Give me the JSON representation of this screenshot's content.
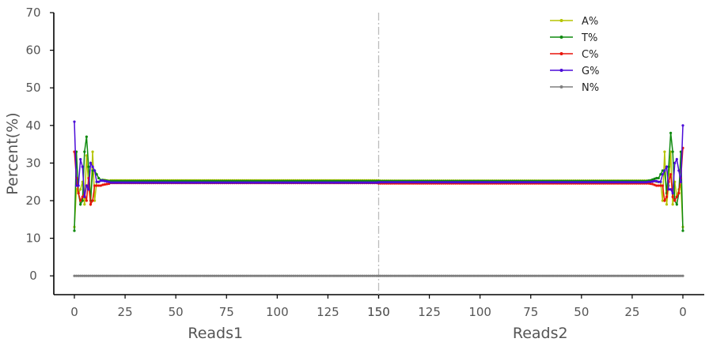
{
  "chart_data": {
    "type": "line",
    "ylabel": "Percent(%)",
    "ylim": [
      -5,
      70
    ],
    "yticks": [
      0,
      10,
      20,
      30,
      40,
      50,
      60,
      70
    ],
    "xaxis": {
      "left_segment": {
        "label": "Reads1",
        "positions": [
          0,
          150
        ]
      },
      "right_segment": {
        "label": "Reads2",
        "positions": [
          150,
          0
        ]
      },
      "left_ticks": [
        0,
        25,
        50,
        75,
        100,
        125,
        150
      ],
      "right_ticks": [
        150,
        125,
        100,
        75,
        50,
        25,
        0
      ],
      "divider_position": 150
    },
    "legend": {
      "placement": "top-right",
      "items": [
        "A%",
        "T%",
        "C%",
        "G%",
        "N%"
      ]
    },
    "grid": false,
    "series": [
      {
        "name": "A%",
        "color": "#b5c400",
        "reads1": [
          13,
          23,
          22,
          23,
          25,
          19,
          32,
          24,
          19,
          33,
          20,
          25,
          25,
          25.3,
          25.5,
          25.5,
          25.4,
          25.3
        ],
        "reads1_plateau": 25.4,
        "reads2": [
          13,
          24,
          23,
          21,
          25,
          19,
          33,
          24,
          19,
          33,
          20,
          25,
          25,
          25,
          25.3,
          25.4,
          25.4,
          25.3
        ],
        "reads2_plateau": 25.3
      },
      {
        "name": "T%",
        "color": "#0f8a0f",
        "reads1": [
          12,
          33,
          22,
          19,
          20,
          33,
          37,
          29,
          20,
          28,
          28,
          27,
          26,
          25.5,
          25.5,
          25.4,
          25.3,
          25.2
        ],
        "reads1_plateau": 25.2,
        "reads2": [
          12,
          33,
          22,
          19,
          20,
          33,
          38,
          29,
          22,
          28,
          28,
          27,
          26,
          26,
          25.8,
          25.6,
          25.4,
          25.3
        ],
        "reads2_plateau": 25.2
      },
      {
        "name": "C%",
        "color": "#e8140a",
        "reads1": [
          33,
          26,
          22,
          20,
          21,
          22,
          20,
          26,
          19,
          20,
          24,
          24,
          24,
          24,
          24.2,
          24.3,
          24.4,
          24.5
        ],
        "reads1_plateau": 24.7,
        "reads2": [
          34,
          26,
          22,
          21,
          20,
          21,
          27,
          25,
          21,
          20,
          24,
          24,
          24,
          24,
          24.2,
          24.4,
          24.5,
          24.6
        ],
        "reads2_plateau": 24.6
      },
      {
        "name": "G%",
        "color": "#4b0cd8",
        "reads1": [
          41,
          24,
          24,
          31,
          29,
          21,
          24,
          23,
          30,
          29,
          28,
          25,
          25,
          25.3,
          25.3,
          25.2,
          25.1,
          25.0
        ],
        "reads1_plateau": 24.8,
        "reads2": [
          40,
          25,
          28,
          31,
          30,
          22,
          23,
          23,
          29,
          28,
          27,
          25,
          25,
          25.2,
          25.2,
          25.1,
          25.0,
          25.0
        ],
        "reads2_plateau": 24.9
      },
      {
        "name": "N%",
        "color": "#7f7f7f",
        "reads1": [
          0
        ],
        "reads1_plateau": 0,
        "reads2": [
          0
        ],
        "reads2_plateau": 0
      }
    ]
  }
}
